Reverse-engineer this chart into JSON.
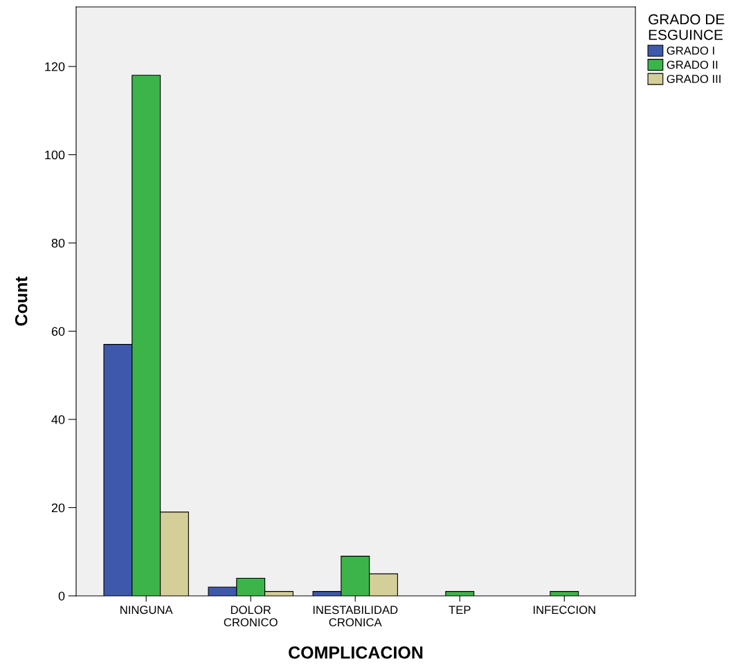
{
  "chart_data": {
    "type": "bar",
    "xlabel": "COMPLICACION",
    "ylabel": "Count",
    "legend_title": "GRADO DE\nESGUINCE",
    "categories": [
      "NINGUNA",
      "DOLOR\nCRONICO",
      "INESTABILIDAD\nCRONICA",
      "TEP",
      "INFECCION"
    ],
    "series": [
      {
        "name": "GRADO I",
        "color": "#3e58ac",
        "values": [
          57,
          2,
          1,
          null,
          null
        ]
      },
      {
        "name": "GRADO II",
        "color": "#3cb44a",
        "values": [
          118,
          4,
          9,
          1,
          1
        ]
      },
      {
        "name": "GRADO III",
        "color": "#d4ce98",
        "values": [
          19,
          1,
          5,
          null,
          null
        ]
      }
    ],
    "ylim": [
      0,
      133.5
    ],
    "yticks": [
      0,
      20,
      40,
      60,
      80,
      100,
      120
    ],
    "grid": false,
    "legend": "top right"
  }
}
